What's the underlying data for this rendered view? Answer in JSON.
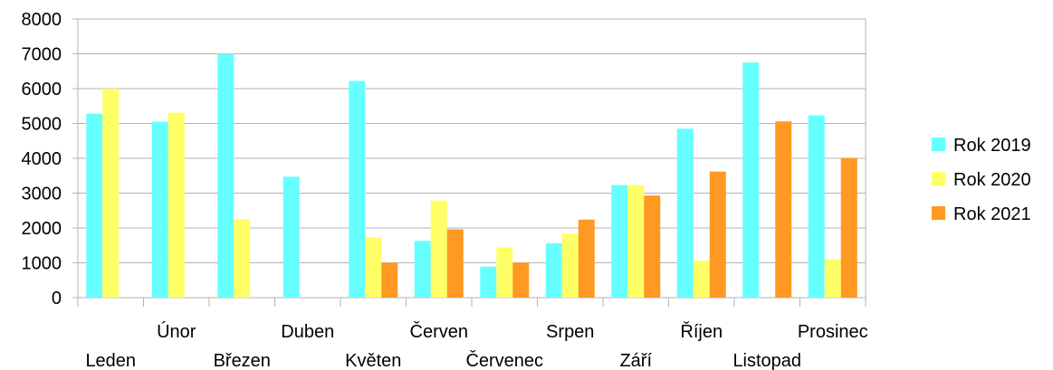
{
  "chart_data": {
    "type": "bar",
    "categories": [
      "Leden",
      "Únor",
      "Březen",
      "Duben",
      "Květen",
      "Červen",
      "Červenec",
      "Srpen",
      "Září",
      "Říjen",
      "Listopad",
      "Prosinec"
    ],
    "series": [
      {
        "name": "Rok 2019",
        "color": "#66ffff",
        "values": [
          5280,
          5050,
          7000,
          3470,
          6220,
          1630,
          890,
          1560,
          3230,
          4850,
          6750,
          5230
        ]
      },
      {
        "name": "Rok 2020",
        "color": "#ffff66",
        "values": [
          6000,
          5310,
          2250,
          0,
          1730,
          2790,
          1440,
          1840,
          3230,
          1060,
          0,
          1100
        ]
      },
      {
        "name": "Rok 2021",
        "color": "#ff9922",
        "values": [
          0,
          0,
          0,
          0,
          1000,
          1960,
          1000,
          2240,
          2930,
          3620,
          5060,
          4010
        ]
      }
    ],
    "ylim": [
      0,
      8000
    ],
    "yticks": [
      "0",
      "1000",
      "2000",
      "3000",
      "4000",
      "5000",
      "6000",
      "7000",
      "8000"
    ],
    "grid": true,
    "legend_position": "right",
    "title": "",
    "xlabel": "",
    "ylabel": ""
  }
}
